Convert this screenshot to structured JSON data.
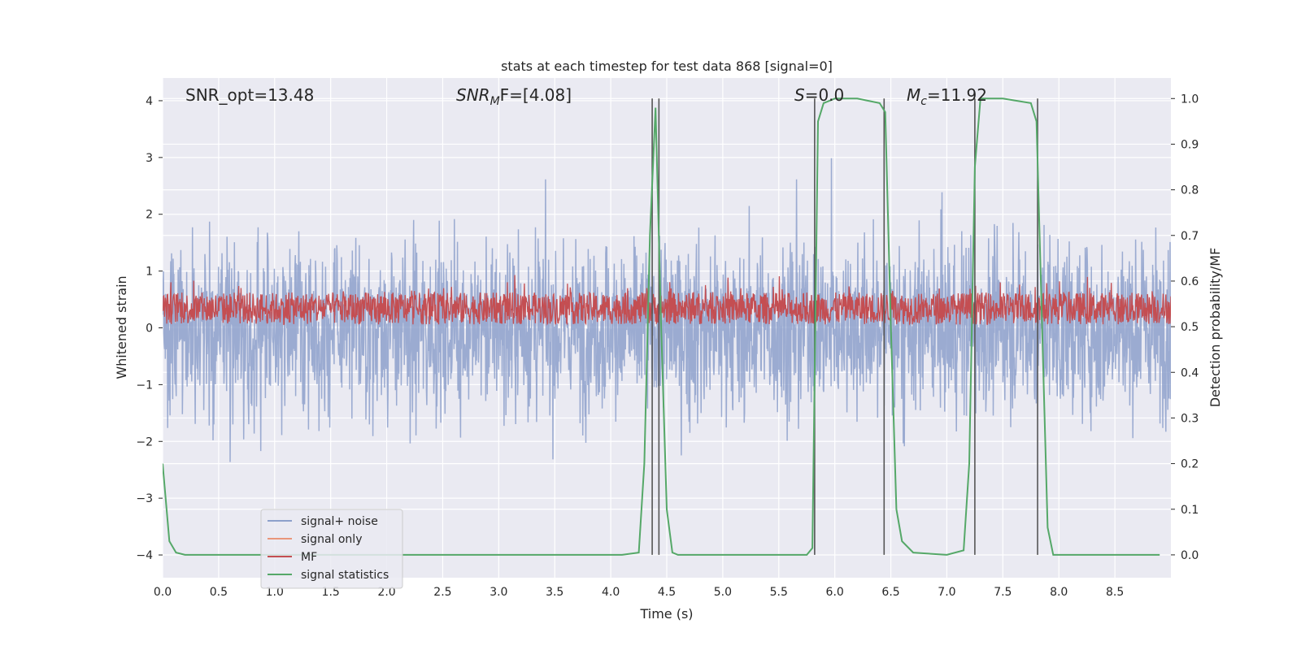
{
  "chart_data": {
    "type": "line",
    "title": "stats at each timestep for test data 868 [signal=0]",
    "xlabel": "Time (s)",
    "ylabel_left": "Whitened strain",
    "ylabel_right": "Detection probability/MF",
    "xlim": [
      0,
      9.0
    ],
    "ylim_left": [
      -4.4,
      4.4
    ],
    "ylim_right": [
      -0.05,
      1.045
    ],
    "x_ticks": [
      "0.0",
      "0.5",
      "1.0",
      "1.5",
      "2.0",
      "2.5",
      "3.0",
      "3.5",
      "4.0",
      "4.5",
      "5.0",
      "5.5",
      "6.0",
      "6.5",
      "7.0",
      "7.5",
      "8.0",
      "8.5"
    ],
    "y_ticks_left": [
      "4",
      "3",
      "2",
      "1",
      "0",
      "−1",
      "−2",
      "−3",
      "−4"
    ],
    "y_ticks_right": [
      "1.0",
      "0.9",
      "0.8",
      "0.7",
      "0.6",
      "0.5",
      "0.4",
      "0.3",
      "0.2",
      "0.1",
      "0.0"
    ],
    "annotations": {
      "snr_opt": "SNR_opt=13.48",
      "snr_mf_main": "SNR",
      "snr_mf_sub": "M",
      "snr_mf_rest": "F=[4.08]",
      "s_main": "S",
      "s_rest": "=0.0",
      "mc_main": "M",
      "mc_sub": "c",
      "mc_rest": "=11.92"
    },
    "legend": {
      "placement": "lower-left",
      "entries": [
        {
          "label": "signal+ noise",
          "color": "#8da0cb"
        },
        {
          "label": "signal only",
          "color": "#e9967a"
        },
        {
          "label": "MF",
          "color": "#c44e52"
        },
        {
          "label": "signal statistics",
          "color": "#55a868"
        }
      ]
    },
    "grid": true,
    "series": [
      {
        "name": "signal+ noise",
        "axis": "left",
        "color": "#8da0cb",
        "description": "whitened noise, mostly within ±2.5 with spikes to about ±3.5"
      },
      {
        "name": "MF",
        "axis": "right",
        "color": "#c44e52",
        "description": "values between about 0.50 and 0.62"
      },
      {
        "name": "signal statistics",
        "axis": "right",
        "color": "#55a868",
        "x": [
          0.0,
          0.06,
          0.12,
          0.2,
          0.4,
          1.0,
          2.0,
          3.0,
          4.0,
          4.1,
          4.25,
          4.3,
          4.35,
          4.4,
          4.45,
          4.5,
          4.55,
          4.6,
          5.0,
          5.5,
          5.75,
          5.8,
          5.85,
          5.9,
          6.0,
          6.2,
          6.4,
          6.45,
          6.5,
          6.55,
          6.6,
          6.7,
          7.0,
          7.15,
          7.2,
          7.25,
          7.3,
          7.5,
          7.75,
          7.8,
          7.85,
          7.9,
          7.95,
          8.3,
          8.9
        ],
        "values": [
          0.2,
          0.03,
          0.005,
          0.0,
          0.0,
          0.0,
          0.0,
          0.0,
          0.0,
          0.0,
          0.005,
          0.2,
          0.7,
          0.98,
          0.5,
          0.1,
          0.005,
          0.0,
          0.0,
          0.0,
          0.0,
          0.015,
          0.95,
          0.99,
          1.0,
          1.0,
          0.99,
          0.97,
          0.5,
          0.1,
          0.03,
          0.005,
          0.0,
          0.01,
          0.2,
          0.85,
          1.0,
          1.0,
          0.99,
          0.95,
          0.5,
          0.06,
          0.0,
          0.0,
          0.0
        ]
      }
    ],
    "vertical_lines_x": [
      4.37,
      4.43,
      5.82,
      6.44,
      7.25,
      7.81
    ],
    "colors": {
      "plot_bg": "#eaeaf2",
      "grid": "#ffffff",
      "vline": "#555555"
    }
  }
}
